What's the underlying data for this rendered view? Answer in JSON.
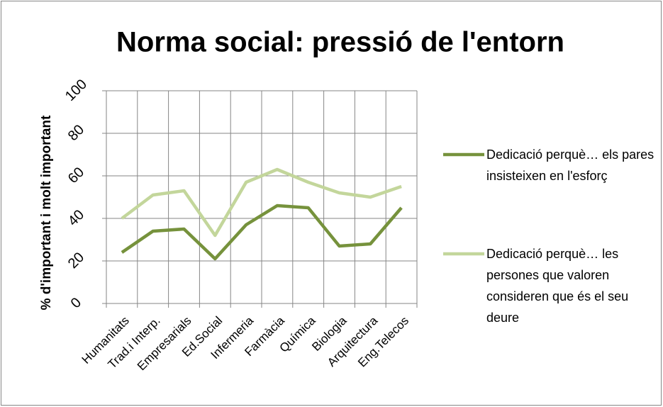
{
  "chart_data": {
    "type": "line",
    "title": "Norma social: pressió de l'entorn",
    "y_label": "% d'important i molt important",
    "categories": [
      "Humanitats",
      "Trad.i Interp.",
      "Empresarials",
      "Ed.Social",
      "Infermeria",
      "Farmàcia",
      "Química",
      "Biologia",
      "Arquitectura",
      "Eng.Telecos"
    ],
    "series": [
      {
        "name": "Dedicació perquè… els pares insisteixen en l'esforç",
        "color": "#76923c",
        "values": [
          24,
          34,
          35,
          21,
          37,
          46,
          45,
          27,
          28,
          45
        ]
      },
      {
        "name": "Dedicació perquè… les persones que valoren consideren que és el seu deure",
        "color": "#c3d69b",
        "values": [
          40,
          51,
          53,
          32,
          57,
          63,
          57,
          52,
          50,
          55
        ]
      }
    ],
    "ylim": [
      0,
      100
    ],
    "yticks": [
      0,
      20,
      40,
      60,
      80,
      100
    ],
    "grid": true,
    "legend": "right"
  }
}
